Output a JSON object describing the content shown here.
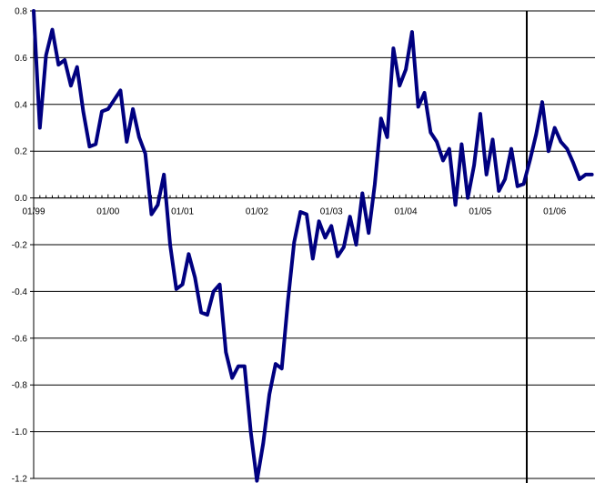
{
  "chart_data": {
    "type": "line",
    "title": "",
    "xlabel": "",
    "ylabel": "",
    "ylim": [
      -1.2,
      0.8
    ],
    "y_ticks": [
      0.8,
      0.6,
      0.4,
      0.2,
      0.0,
      -0.2,
      -0.4,
      -0.6,
      -0.8,
      -1.0,
      -1.2
    ],
    "y_tick_labels": [
      "0.8",
      "0.6",
      "0.4",
      "0.2",
      "0.0",
      "-0.2",
      "-0.4",
      "-0.6",
      "-0.8",
      "-1.0",
      "-1.2"
    ],
    "x_tick_labels": [
      "01/99",
      "01/00",
      "01/01",
      "01/02",
      "01/03",
      "01/04",
      "01/05",
      "01/06"
    ],
    "x_tick_months": [
      0,
      12,
      24,
      36,
      48,
      60,
      72,
      84
    ],
    "xlim_months": [
      0,
      90.5
    ],
    "grid": "horizontal",
    "line_color": "#000080",
    "vertical_marker_month": 79.5,
    "vertical_marker_color": "#000000",
    "series": [
      {
        "name": "",
        "x_months": [
          0,
          1,
          2,
          3,
          4,
          5,
          6,
          7,
          8,
          9,
          10,
          11,
          12,
          13,
          14,
          15,
          16,
          17,
          18,
          19,
          20,
          21,
          22,
          23,
          24,
          25,
          26,
          27,
          28,
          29,
          30,
          31,
          32,
          33,
          34,
          35,
          36,
          37,
          38,
          39,
          40,
          41,
          42,
          43,
          44,
          45,
          46,
          47,
          48,
          49,
          50,
          51,
          52,
          53,
          54,
          55,
          56,
          57,
          58,
          59,
          60,
          61,
          62,
          63,
          64,
          65,
          66,
          67,
          68,
          69,
          70,
          71,
          72,
          73,
          74,
          75,
          76,
          77,
          78,
          79,
          80,
          81,
          82,
          83,
          84,
          85,
          86,
          87,
          88,
          89,
          90
        ],
        "values": [
          0.8,
          0.3,
          0.61,
          0.72,
          0.57,
          0.59,
          0.48,
          0.56,
          0.37,
          0.22,
          0.23,
          0.37,
          0.38,
          0.42,
          0.46,
          0.24,
          0.38,
          0.26,
          0.19,
          -0.07,
          -0.03,
          0.1,
          -0.2,
          -0.39,
          -0.37,
          -0.24,
          -0.34,
          -0.49,
          -0.5,
          -0.4,
          -0.37,
          -0.66,
          -0.77,
          -0.72,
          -0.72,
          -1.0,
          -1.21,
          -1.05,
          -0.84,
          -0.71,
          -0.73,
          -0.44,
          -0.19,
          -0.06,
          -0.07,
          -0.26,
          -0.1,
          -0.17,
          -0.12,
          -0.25,
          -0.21,
          -0.08,
          -0.2,
          0.02,
          -0.15,
          0.06,
          0.34,
          0.26,
          0.64,
          0.48,
          0.55,
          0.71,
          0.39,
          0.45,
          0.28,
          0.24,
          0.16,
          0.21,
          -0.03,
          0.23,
          0.0,
          0.14,
          0.36,
          0.1,
          0.25,
          0.03,
          0.08,
          0.21,
          0.05,
          0.06,
          0.16,
          0.27,
          0.41,
          0.2,
          0.3,
          0.24,
          0.21,
          0.15,
          0.08,
          0.1,
          0.1
        ]
      }
    ]
  }
}
